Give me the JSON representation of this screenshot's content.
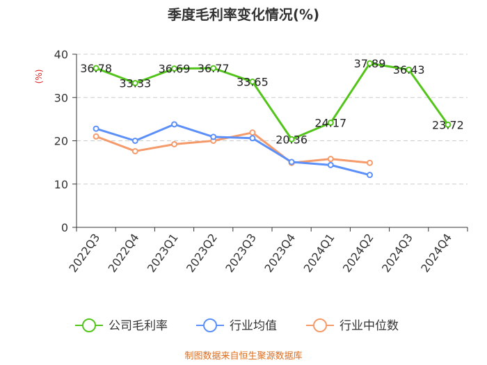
{
  "chart_data": {
    "type": "line",
    "title": "季度毛利率变化情况(%)",
    "ylabel": "(%)",
    "xlabel": "",
    "ylim": [
      0,
      40
    ],
    "yticks": [
      0,
      10,
      20,
      30,
      40
    ],
    "grid": true,
    "legend_position": "bottom",
    "categories": [
      "2022Q3",
      "2022Q4",
      "2023Q1",
      "2023Q2",
      "2023Q3",
      "2023Q4",
      "2024Q1",
      "2024Q2",
      "2024Q3",
      "2024Q4"
    ],
    "series": [
      {
        "name": "公司毛利率",
        "color": "#52c41a",
        "values": [
          36.78,
          33.33,
          36.69,
          36.77,
          33.65,
          20.36,
          24.17,
          37.89,
          36.43,
          23.72
        ],
        "labels": [
          "36.78",
          "33.33",
          "36.69",
          "36.77",
          "33.65",
          "20.36",
          "24.17",
          "37.89",
          "36.43",
          "23.72"
        ]
      },
      {
        "name": "行业均值",
        "color": "#5b8ff9",
        "values": [
          22.8,
          20.0,
          23.8,
          20.9,
          20.6,
          15.1,
          14.4,
          12.1,
          null,
          null
        ]
      },
      {
        "name": "行业中位数",
        "color": "#f59a6a",
        "values": [
          21.0,
          17.6,
          19.2,
          20.0,
          21.9,
          14.9,
          15.8,
          14.9,
          null,
          null
        ]
      }
    ],
    "source_note": "制图数据来自恒生聚源数据库",
    "source_color": "#e06c1a",
    "ylabel_color": "#e02020"
  }
}
